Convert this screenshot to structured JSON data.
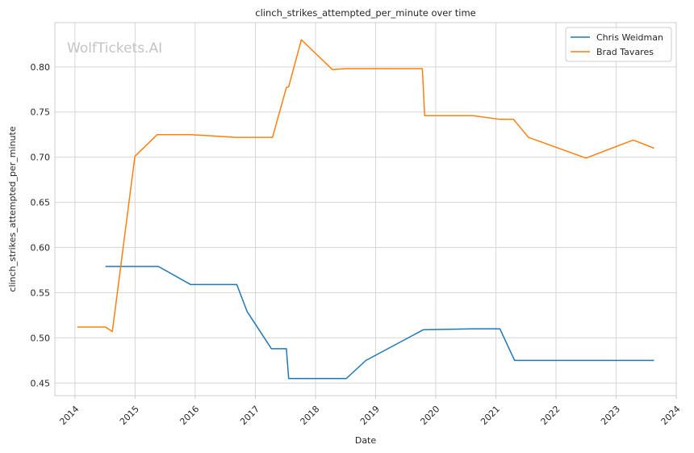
{
  "watermark": "WolfTickets.AI",
  "chart_data": {
    "type": "line",
    "title": "clinch_strikes_attempted_per_minute over time",
    "xlabel": "Date",
    "ylabel": "clinch_strikes_attempted_per_minute",
    "xlim": [
      "2013-09-01",
      "2024-01-01"
    ],
    "ylim": [
      0.436,
      0.849
    ],
    "x_ticks": [
      "2014",
      "2015",
      "2016",
      "2017",
      "2018",
      "2019",
      "2020",
      "2021",
      "2022",
      "2023",
      "2024"
    ],
    "y_ticks": [
      "0.45",
      "0.50",
      "0.55",
      "0.60",
      "0.65",
      "0.70",
      "0.75",
      "0.80"
    ],
    "grid": true,
    "legend_position": "top-right",
    "series": [
      {
        "name": "Chris Weidman",
        "color": "#1f77b4",
        "points": [
          [
            "2014-07-05",
            0.579
          ],
          [
            "2015-05-23",
            0.579
          ],
          [
            "2015-12-05",
            0.559
          ],
          [
            "2016-09-10",
            0.559
          ],
          [
            "2016-11-12",
            0.529
          ],
          [
            "2017-04-08",
            0.488
          ],
          [
            "2017-07-08",
            0.488
          ],
          [
            "2017-07-22",
            0.455
          ],
          [
            "2018-07-07",
            0.455
          ],
          [
            "2018-11-03",
            0.475
          ],
          [
            "2019-10-18",
            0.509
          ],
          [
            "2020-08-08",
            0.51
          ],
          [
            "2021-01-25",
            0.51
          ],
          [
            "2021-04-24",
            0.475
          ],
          [
            "2023-04-22",
            0.475
          ],
          [
            "2023-08-19",
            0.475
          ]
        ]
      },
      {
        "name": "Brad Tavares",
        "color": "#ff7f0e",
        "points": [
          [
            "2014-01-15",
            0.512
          ],
          [
            "2014-07-05",
            0.512
          ],
          [
            "2014-08-16",
            0.507
          ],
          [
            "2014-12-31",
            0.701
          ],
          [
            "2015-05-16",
            0.725
          ],
          [
            "2015-12-05",
            0.725
          ],
          [
            "2016-09-03",
            0.722
          ],
          [
            "2017-04-15",
            0.722
          ],
          [
            "2017-07-08",
            0.777
          ],
          [
            "2017-07-22",
            0.778
          ],
          [
            "2017-10-07",
            0.83
          ],
          [
            "2018-04-14",
            0.797
          ],
          [
            "2018-07-07",
            0.798
          ],
          [
            "2019-10-12",
            0.798
          ],
          [
            "2019-10-26",
            0.746
          ],
          [
            "2020-08-15",
            0.746
          ],
          [
            "2021-01-20",
            0.742
          ],
          [
            "2021-04-17",
            0.742
          ],
          [
            "2021-07-17",
            0.722
          ],
          [
            "2022-07-02",
            0.699
          ],
          [
            "2023-04-15",
            0.719
          ],
          [
            "2023-08-19",
            0.71
          ]
        ]
      }
    ]
  }
}
